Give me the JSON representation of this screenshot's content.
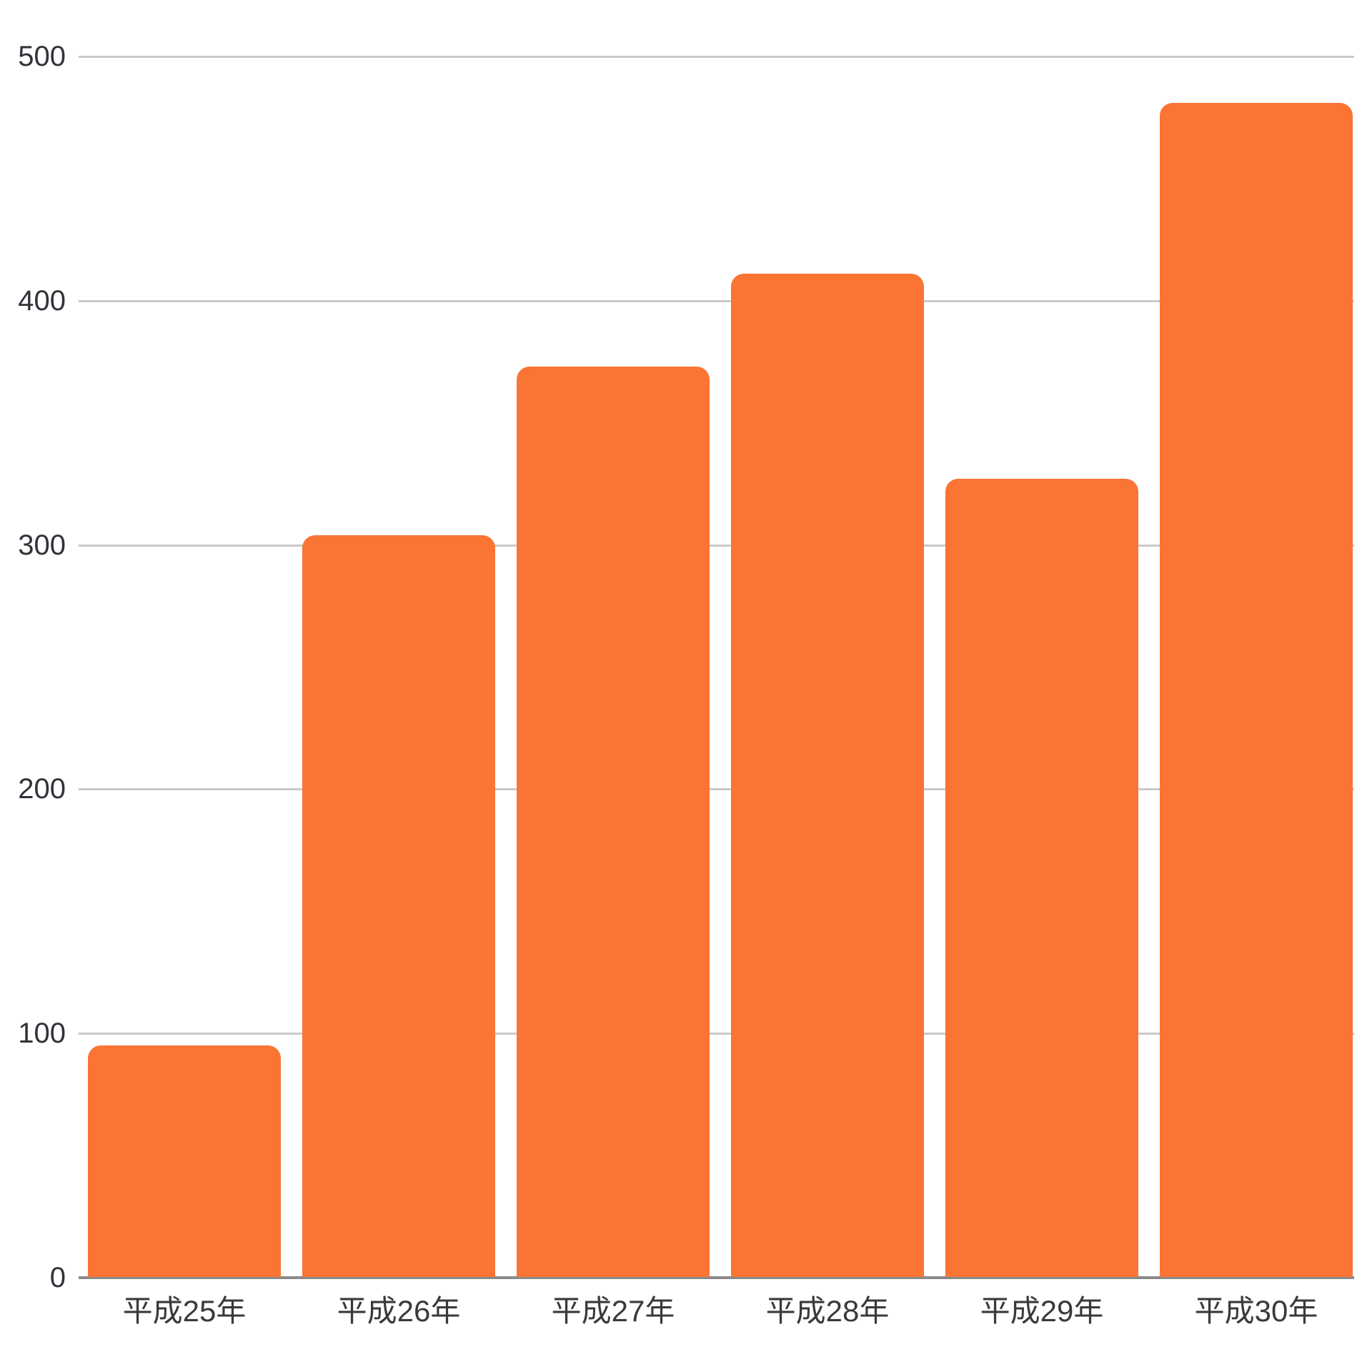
{
  "chart_data": {
    "type": "bar",
    "title": "",
    "categories": [
      "平成25年",
      "平成26年",
      "平成27年",
      "平成28年",
      "平成29年",
      "平成30年"
    ],
    "values": [
      95,
      304,
      373,
      411,
      327,
      481
    ],
    "xlabel": "",
    "ylabel": "",
    "ylim": [
      0,
      500
    ],
    "yticks": [
      0,
      100,
      200,
      300,
      400,
      500
    ],
    "grid": true,
    "legend": false,
    "bar_color": "#fa7434",
    "gridline_color": "#c9c9c9",
    "axis_line_color": "#8a8a8a",
    "y_tick_label_color": "#32323a",
    "x_tick_label_color": "#3a3a3a"
  }
}
